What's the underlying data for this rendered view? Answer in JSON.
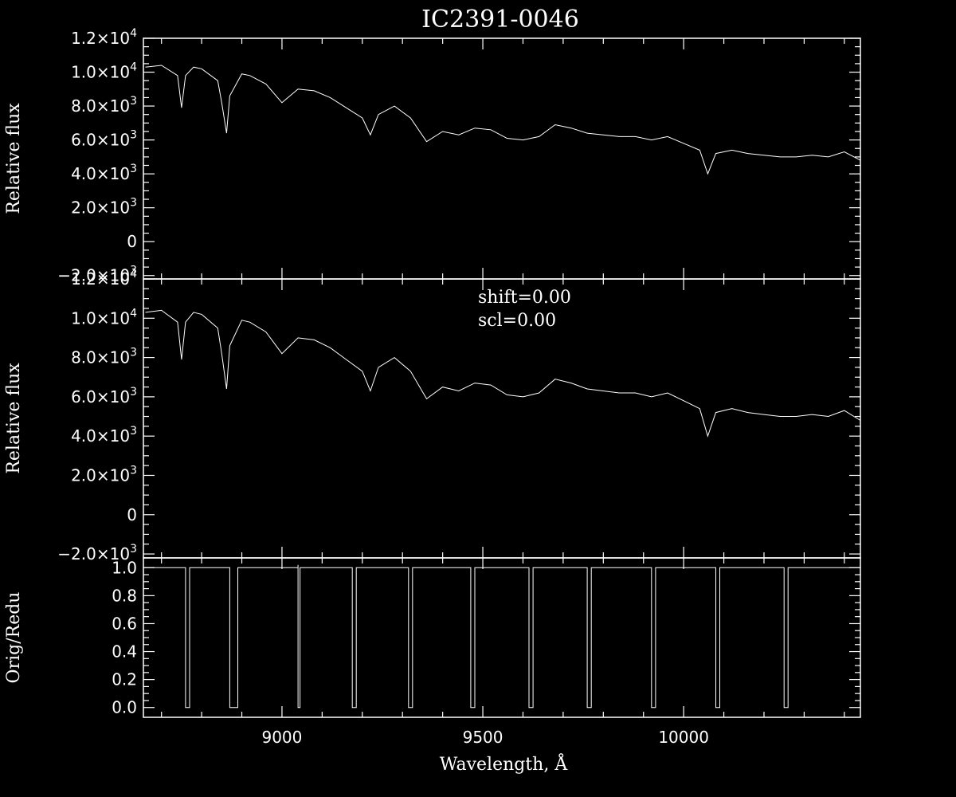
{
  "chart_data": {
    "type": "line",
    "title": "IC2391-0046",
    "xlabel": "Wavelength, Å",
    "xlim": [
      8655,
      10440
    ],
    "x_ticks": [
      9000,
      9500,
      10000
    ],
    "x_tick_labels": [
      "9000",
      "9500",
      "10000"
    ],
    "panels": [
      {
        "ylabel": "Relative flux",
        "ylim": [
          -2200,
          12000
        ],
        "y_ticks": [
          -2000,
          0,
          2000,
          4000,
          6000,
          8000,
          10000,
          12000
        ],
        "y_tick_labels": [
          {
            "mant": "−2.0×10",
            "exp": "3"
          },
          {
            "mant": "0",
            "exp": ""
          },
          {
            "mant": "2.0×10",
            "exp": "3"
          },
          {
            "mant": "4.0×10",
            "exp": "3"
          },
          {
            "mant": "6.0×10",
            "exp": "3"
          },
          {
            "mant": "8.0×10",
            "exp": "3"
          },
          {
            "mant": "1.0×10",
            "exp": "4"
          },
          {
            "mant": "1.2×10",
            "exp": "4"
          }
        ],
        "annotations": [],
        "series": [
          {
            "x": [
              8660,
              8700,
              8740,
              8750,
              8760,
              8780,
              8800,
              8840,
              8850,
              8862,
              8870,
              8900,
              8920,
              8960,
              9000,
              9040,
              9080,
              9120,
              9160,
              9200,
              9220,
              9240,
              9280,
              9320,
              9360,
              9400,
              9440,
              9480,
              9520,
              9560,
              9600,
              9640,
              9680,
              9720,
              9760,
              9800,
              9840,
              9880,
              9920,
              9960,
              10000,
              10040,
              10060,
              10080,
              10120,
              10160,
              10200,
              10240,
              10280,
              10320,
              10360,
              10400,
              10440
            ],
            "y": [
              10300,
              10400,
              9800,
              7900,
              9800,
              10300,
              10200,
              9500,
              8200,
              6400,
              8600,
              9900,
              9800,
              9300,
              8200,
              9000,
              8900,
              8500,
              7900,
              7300,
              6300,
              7500,
              8000,
              7300,
              5900,
              6500,
              6300,
              6700,
              6600,
              6100,
              6000,
              6200,
              6900,
              6700,
              6400,
              6300,
              6200,
              6200,
              6000,
              6200,
              5800,
              5400,
              4000,
              5200,
              5400,
              5200,
              5100,
              5000,
              5000,
              5100,
              5000,
              5300,
              4800
            ]
          }
        ]
      },
      {
        "ylabel": "Relative flux",
        "ylim": [
          -2200,
          12000
        ],
        "y_ticks": [
          -2000,
          0,
          2000,
          4000,
          6000,
          8000,
          10000,
          12000
        ],
        "y_tick_labels": [
          {
            "mant": "−2.0×10",
            "exp": "3"
          },
          {
            "mant": "0",
            "exp": ""
          },
          {
            "mant": "2.0×10",
            "exp": "3"
          },
          {
            "mant": "4.0×10",
            "exp": "3"
          },
          {
            "mant": "6.0×10",
            "exp": "3"
          },
          {
            "mant": "8.0×10",
            "exp": "3"
          },
          {
            "mant": "1.0×10",
            "exp": "4"
          },
          {
            "mant": "1.2×10",
            "exp": "4"
          }
        ],
        "annotations": [
          "shift=0.00",
          "scl=0.00"
        ],
        "series": [
          {
            "x": [
              8660,
              8700,
              8740,
              8750,
              8760,
              8780,
              8800,
              8840,
              8850,
              8862,
              8870,
              8900,
              8920,
              8960,
              9000,
              9040,
              9080,
              9120,
              9160,
              9200,
              9220,
              9240,
              9280,
              9320,
              9360,
              9400,
              9440,
              9480,
              9520,
              9560,
              9600,
              9640,
              9680,
              9720,
              9760,
              9800,
              9840,
              9880,
              9920,
              9960,
              10000,
              10040,
              10060,
              10080,
              10120,
              10160,
              10200,
              10240,
              10280,
              10320,
              10360,
              10400,
              10440
            ],
            "y": [
              10300,
              10400,
              9800,
              7900,
              9800,
              10300,
              10200,
              9500,
              8200,
              6400,
              8600,
              9900,
              9800,
              9300,
              8200,
              9000,
              8900,
              8500,
              7900,
              7300,
              6300,
              7500,
              8000,
              7300,
              5900,
              6500,
              6300,
              6700,
              6600,
              6100,
              6000,
              6200,
              6900,
              6700,
              6400,
              6300,
              6200,
              6200,
              6000,
              6200,
              5800,
              5400,
              4000,
              5200,
              5400,
              5200,
              5100,
              5000,
              5000,
              5100,
              5000,
              5300,
              4800
            ]
          }
        ]
      },
      {
        "ylabel": "Orig/Redu",
        "ylim": [
          -0.07,
          1.07
        ],
        "y_ticks": [
          0,
          0.2,
          0.4,
          0.6,
          0.8,
          1.0
        ],
        "y_tick_labels": [
          {
            "mant": "0.0",
            "exp": ""
          },
          {
            "mant": "0.2",
            "exp": ""
          },
          {
            "mant": "0.4",
            "exp": ""
          },
          {
            "mant": "0.6",
            "exp": ""
          },
          {
            "mant": "0.8",
            "exp": ""
          },
          {
            "mant": "1.0",
            "exp": ""
          }
        ],
        "annotations": [],
        "series": [
          {
            "x": [
              8655,
              8760,
              8760,
              8770,
              8770,
              8870,
              8870,
              8890,
              8890,
              9040,
              9040,
              9040,
              9040,
              9045,
              9045,
              9175,
              9175,
              9185,
              9185,
              9315,
              9315,
              9325,
              9325,
              9470,
              9470,
              9480,
              9480,
              9615,
              9615,
              9625,
              9625,
              9760,
              9760,
              9770,
              9770,
              9920,
              9920,
              9930,
              9930,
              10080,
              10080,
              10090,
              10090,
              10250,
              10250,
              10260,
              10260,
              10440
            ],
            "y": [
              1,
              1,
              0,
              0,
              1,
              1,
              0,
              0,
              1,
              1,
              0,
              1.02,
              0,
              0,
              1,
              1,
              0,
              0,
              1,
              1,
              0,
              0,
              1,
              1,
              0,
              0,
              1,
              1,
              0,
              0,
              1,
              1,
              0,
              0,
              1,
              1,
              0,
              0,
              1,
              1,
              0,
              0,
              1,
              1,
              0,
              0,
              1,
              1
            ]
          }
        ]
      }
    ]
  }
}
